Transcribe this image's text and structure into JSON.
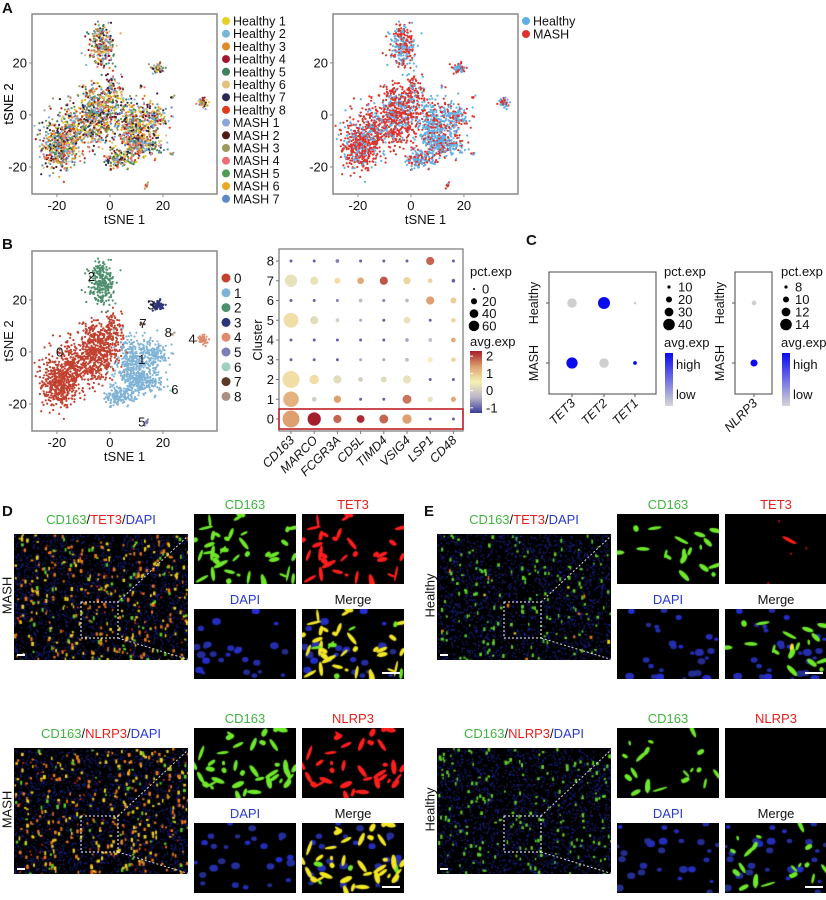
{
  "panel_labels": {
    "A": "A",
    "B": "B",
    "C": "C",
    "D": "D",
    "E": "E"
  },
  "chart_data": [
    {
      "type": "scatter",
      "panel": "A",
      "xlabel": "tSNE 1",
      "ylabel": "tSNE 2",
      "xticks": [
        "-20",
        "0",
        "20"
      ],
      "yticks": [
        "-20",
        "0",
        "20"
      ],
      "xlim": [
        -29.4,
        40.4
      ],
      "ylim": [
        -30.4,
        38.8
      ],
      "color_by": "sample",
      "legend_placement": "right",
      "legend": [
        "Healthy 1",
        "Healthy 2",
        "Healthy 3",
        "Healthy 4",
        "Healthy 5",
        "Healthy 6",
        "Healthy 7",
        "Healthy 8",
        "MASH 1",
        "MASH 2",
        "MASH 3",
        "MASH 4",
        "MASH 5",
        "MASH 6",
        "MASH 7"
      ],
      "colors": [
        "#e3d02a",
        "#76b7d6",
        "#de8a2a",
        "#a0182c",
        "#3f7f5a",
        "#e2c27e",
        "#2a2750",
        "#e03a1c",
        "#8da6dc",
        "#4d1a16",
        "#9c9a58",
        "#ec6f77",
        "#4f9a55",
        "#e8a825",
        "#5b8ac4"
      ]
    },
    {
      "type": "scatter",
      "panel": "A",
      "xlabel": "tSNE 1",
      "ylabel": "tSNE 2",
      "xticks": [
        "-20",
        "0",
        "20"
      ],
      "yticks": [
        "-20",
        "0",
        "20"
      ],
      "xlim": [
        -29.4,
        40.4
      ],
      "ylim": [
        -30.4,
        38.8
      ],
      "color_by": "condition",
      "legend_placement": "top-right",
      "legend": [
        "Healthy",
        "MASH"
      ],
      "colors": [
        "#5fb0e6",
        "#e0322b"
      ]
    },
    {
      "type": "scatter",
      "panel": "B",
      "xlabel": "tSNE 1",
      "ylabel": "tSNE 2",
      "xticks": [
        "-20",
        "0",
        "20"
      ],
      "yticks": [
        "-20",
        "0",
        "20"
      ],
      "xlim": [
        -29.4,
        40.4
      ],
      "ylim": [
        -30.4,
        38.8
      ],
      "color_by": "cluster",
      "legend_placement": "right",
      "legend": [
        "0",
        "1",
        "2",
        "3",
        "4",
        "5",
        "6",
        "7",
        "8"
      ],
      "colors": [
        "#c2412f",
        "#7fb3d6",
        "#4e8f6e",
        "#2b3577",
        "#df8a6b",
        "#7c7eb4",
        "#9fd0be",
        "#5a3a26",
        "#a89080"
      ],
      "cluster_labels": [
        {
          "text": "0",
          "x": -19,
          "y": 0
        },
        {
          "text": "1",
          "x": 12,
          "y": -3
        },
        {
          "text": "2",
          "x": -7,
          "y": 29
        },
        {
          "text": "3",
          "x": 15.5,
          "y": 18
        },
        {
          "text": "4",
          "x": 31,
          "y": 5
        },
        {
          "text": "5",
          "x": 12,
          "y": -27
        },
        {
          "text": "6",
          "x": 24.5,
          "y": -14.5
        },
        {
          "text": "7",
          "x": 12.5,
          "y": 11
        },
        {
          "text": "8",
          "x": 22,
          "y": 7.5
        }
      ],
      "cluster_regions": [
        {
          "cluster": 0,
          "blobs": [
            [
              -18,
              -10,
              4,
              5,
              330
            ],
            [
              -10,
              -4,
              5,
              4,
              360
            ],
            [
              -3,
              2,
              4,
              4,
              300
            ],
            [
              1,
              9,
              2,
              3,
              90
            ],
            [
              -20,
              -15,
              3,
              3,
              150
            ],
            [
              -6,
              8,
              3,
              2,
              60
            ]
          ]
        },
        {
          "cluster": 1,
          "blobs": [
            [
              8,
              -2,
              3,
              4,
              200
            ],
            [
              16,
              -1,
              3,
              3,
              160
            ],
            [
              10,
              -10,
              3,
              3,
              200
            ],
            [
              4,
              -17,
              3,
              2,
              150
            ],
            [
              15,
              -12,
              3,
              2,
              100
            ]
          ]
        },
        {
          "cluster": 2,
          "blobs": [
            [
              -3,
              26,
              2.5,
              4,
              200
            ],
            [
              -4,
              32,
              1.5,
              2,
              40
            ]
          ]
        },
        {
          "cluster": 3,
          "blobs": [
            [
              18,
              18,
              1.2,
              1,
              60
            ]
          ]
        },
        {
          "cluster": 4,
          "blobs": [
            [
              35,
              5,
              1,
              0.8,
              40
            ]
          ]
        },
        {
          "cluster": 5,
          "blobs": [
            [
              14,
              -27,
              0.6,
              0.5,
              10
            ]
          ]
        },
        {
          "cluster": 6,
          "blobs": [
            [
              23,
              -14.5,
              0.5,
              0.4,
              5
            ]
          ]
        },
        {
          "cluster": 7,
          "blobs": [
            [
              12,
              11,
              0.5,
              0.5,
              5
            ]
          ]
        },
        {
          "cluster": 8,
          "blobs": [
            [
              24,
              7,
              0.5,
              0.5,
              5
            ]
          ]
        }
      ]
    },
    {
      "type": "dot",
      "panel": "B",
      "ylabel": "Cluster",
      "genes": [
        "CD163",
        "MARCO",
        "FCGR3A",
        "CD5L",
        "TIMD4",
        "VSIG4",
        "LSP1",
        "CD48"
      ],
      "clusters": [
        "0",
        "1",
        "2",
        "3",
        "4",
        "5",
        "6",
        "7",
        "8"
      ],
      "highlight_cluster": "0",
      "highlight_color": "#c0202a",
      "pct_exp": [
        [
          65,
          40,
          15,
          14,
          18,
          20,
          2,
          2
        ],
        [
          55,
          5,
          12,
          2,
          2,
          18,
          6,
          6
        ],
        [
          65,
          20,
          15,
          5,
          8,
          15,
          2,
          2
        ],
        [
          2,
          2,
          2,
          2,
          2,
          3,
          6,
          5
        ],
        [
          2,
          2,
          2,
          2,
          2,
          3,
          3,
          5
        ],
        [
          50,
          15,
          3,
          2,
          2,
          10,
          2,
          5
        ],
        [
          2,
          2,
          2,
          3,
          2,
          3,
          15,
          8
        ],
        [
          35,
          15,
          8,
          10,
          15,
          12,
          5,
          3
        ],
        [
          2,
          2,
          3,
          2,
          2,
          2,
          15,
          2
        ]
      ],
      "avg_exp": [
        [
          1.4,
          2.3,
          1.8,
          2.2,
          1.8,
          1.4,
          -1,
          -1
        ],
        [
          1.2,
          0,
          1.4,
          -1,
          -1,
          1.7,
          0.3,
          1.3
        ],
        [
          0.7,
          0.7,
          0.2,
          0,
          0.2,
          0.3,
          -1,
          -1
        ],
        [
          -1,
          -1,
          -1,
          -0.5,
          -0.5,
          -0.3,
          0.5,
          0.8
        ],
        [
          -1,
          -1,
          -1,
          -1,
          -1,
          -0.5,
          -0.3,
          1.3
        ],
        [
          0.7,
          0.2,
          0,
          -0.5,
          -1,
          0.3,
          -1,
          0.8
        ],
        [
          -1,
          -1,
          -0.8,
          -0.3,
          -0.8,
          -0.3,
          1.4,
          0.9
        ],
        [
          0.3,
          0.3,
          0.7,
          1.3,
          1.9,
          0.8,
          0.8,
          -1
        ],
        [
          -1,
          -1,
          -0.8,
          -1,
          -1,
          -1,
          1.8,
          -1
        ]
      ],
      "size_legend": {
        "title": "pct.exp",
        "values": [
          "0",
          "20",
          "40",
          "60"
        ]
      },
      "color_legend": {
        "title": "avg.exp",
        "ticks": [
          "2",
          "1",
          "0",
          "-1"
        ],
        "range": [
          -1.3,
          2.3
        ],
        "colors": [
          "#3a3b98",
          "#b8b3c8",
          "#f6f0b6",
          "#dfa070",
          "#a51c2a"
        ]
      }
    },
    {
      "type": "dot",
      "panel": "C",
      "genes": [
        "TET3",
        "TET2",
        "TET1"
      ],
      "groups": [
        "Healthy",
        "MASH"
      ],
      "pct_exp": [
        [
          25,
          40,
          2
        ],
        [
          35,
          25,
          4
        ]
      ],
      "avg_exp_level": [
        [
          0,
          1,
          0
        ],
        [
          1,
          0,
          1
        ]
      ],
      "size_legend": {
        "title": "pct.exp",
        "values": [
          "10",
          "20",
          "30",
          "40"
        ]
      },
      "color_legend": {
        "title": "avg.exp",
        "high": "high",
        "low": "low",
        "colors": [
          "#0a0aee",
          "#cfcfcf"
        ]
      }
    },
    {
      "type": "dot",
      "panel": "C",
      "genes": [
        "NLRP3"
      ],
      "groups": [
        "Healthy",
        "MASH"
      ],
      "pct_exp": [
        [
          6
        ],
        [
          14
        ]
      ],
      "avg_exp_level": [
        [
          0
        ],
        [
          1
        ]
      ],
      "size_legend": {
        "title": "pct.exp",
        "values": [
          "8",
          "10",
          "12",
          "14"
        ]
      },
      "color_legend": {
        "title": "avg.exp",
        "high": "high",
        "low": "low",
        "colors": [
          "#0a0aee",
          "#cfcfcf"
        ]
      }
    }
  ],
  "micrographs": [
    {
      "panel": "D",
      "condition": "MASH",
      "overlay": [
        "CD163",
        "/",
        "TET3",
        "/",
        "DAPI"
      ],
      "channels": [
        "CD163",
        "TET3",
        "DAPI",
        "Merge"
      ],
      "marker_level": 1.0,
      "green_level": 1.0
    },
    {
      "panel": "D",
      "condition": "MASH",
      "overlay": [
        "CD163",
        "/",
        "NLRP3",
        "/",
        "DAPI"
      ],
      "channels": [
        "CD163",
        "NLRP3",
        "DAPI",
        "Merge"
      ],
      "marker_level": 1.0,
      "green_level": 1.0
    },
    {
      "panel": "E",
      "condition": "Healthy",
      "overlay": [
        "CD163",
        "/",
        "TET3",
        "/",
        "DAPI"
      ],
      "channels": [
        "CD163",
        "TET3",
        "DAPI",
        "Merge"
      ],
      "marker_level": 0.1,
      "green_level": 0.45
    },
    {
      "panel": "E",
      "condition": "Healthy",
      "overlay": [
        "CD163",
        "/",
        "NLRP3",
        "/",
        "DAPI"
      ],
      "channels": [
        "CD163",
        "NLRP3",
        "DAPI",
        "Merge"
      ],
      "marker_level": 0.0,
      "green_level": 0.5
    }
  ],
  "channel_colors": {
    "green": "#3fb43f",
    "red": "#e8201c",
    "blue": "#2a3ad0",
    "merge": "#111111"
  }
}
